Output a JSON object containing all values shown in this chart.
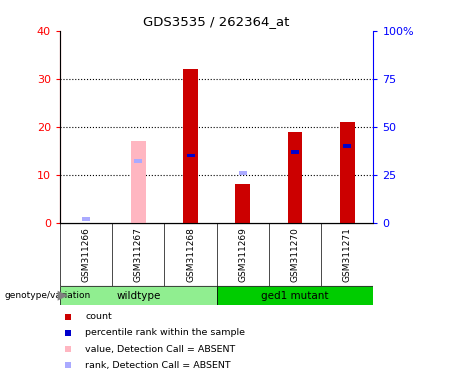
{
  "title": "GDS3535 / 262364_at",
  "samples": [
    "GSM311266",
    "GSM311267",
    "GSM311268",
    "GSM311269",
    "GSM311270",
    "GSM311271"
  ],
  "count_values": [
    0,
    0,
    32,
    8,
    19,
    21
  ],
  "count_absent": [
    0,
    17,
    0,
    0,
    0,
    0
  ],
  "rank_values_pct": [
    0,
    0,
    35,
    0,
    37,
    40
  ],
  "rank_absent_pct": [
    2,
    32,
    0,
    26,
    0,
    0
  ],
  "left_ylim": [
    0,
    40
  ],
  "right_ylim": [
    0,
    100
  ],
  "left_yticks": [
    0,
    10,
    20,
    30,
    40
  ],
  "right_yticks": [
    0,
    25,
    50,
    75,
    100
  ],
  "right_yticklabels": [
    "0",
    "25",
    "50",
    "75",
    "100%"
  ],
  "count_color": "#cc0000",
  "rank_color": "#0000cc",
  "count_absent_color": "#ffb6c1",
  "rank_absent_color": "#aaaaff",
  "genotype_label": "genotype/variation",
  "wildtype_color": "#90ee90",
  "mutant_color": "#00cc00",
  "sample_bg": "#d3d3d3",
  "legend_items": [
    {
      "label": "count",
      "color": "#cc0000"
    },
    {
      "label": "percentile rank within the sample",
      "color": "#0000cc"
    },
    {
      "label": "value, Detection Call = ABSENT",
      "color": "#ffb6c1"
    },
    {
      "label": "rank, Detection Call = ABSENT",
      "color": "#aaaaff"
    }
  ]
}
